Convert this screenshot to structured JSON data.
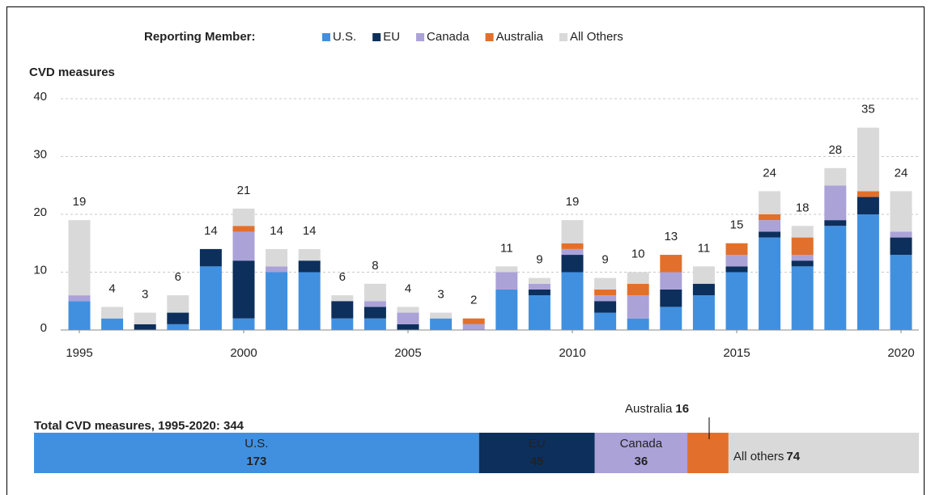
{
  "chart_data": [
    {
      "type": "bar",
      "stacked": true,
      "legend_title": "Reporting Member:",
      "ylabel": "CVD measures",
      "x": [
        1995,
        1996,
        1997,
        1998,
        1999,
        2000,
        2001,
        2002,
        2003,
        2004,
        2005,
        2006,
        2007,
        2008,
        2009,
        2010,
        2011,
        2012,
        2013,
        2014,
        2015,
        2016,
        2017,
        2018,
        2019,
        2020
      ],
      "xlim": [
        1995,
        2020
      ],
      "xticks": [
        1995,
        2000,
        2005,
        2010,
        2015,
        2020
      ],
      "ylim": [
        0,
        40
      ],
      "yticks": [
        0,
        10,
        20,
        30,
        40
      ],
      "grid": true,
      "series": [
        {
          "name": "U.S.",
          "color": "#4190e0",
          "values": [
            5,
            2,
            0,
            1,
            11,
            2,
            10,
            10,
            2,
            2,
            0,
            2,
            0,
            7,
            6,
            10,
            3,
            2,
            4,
            6,
            10,
            16,
            11,
            18,
            20,
            13
          ]
        },
        {
          "name": "EU",
          "color": "#0d2f5c",
          "values": [
            0,
            0,
            1,
            2,
            3,
            10,
            0,
            2,
            3,
            2,
            1,
            0,
            0,
            0,
            1,
            3,
            2,
            0,
            3,
            2,
            1,
            1,
            1,
            1,
            3,
            3
          ]
        },
        {
          "name": "Canada",
          "color": "#aba2d8",
          "values": [
            1,
            0,
            0,
            0,
            0,
            5,
            1,
            0,
            0,
            1,
            2,
            0,
            1,
            3,
            1,
            1,
            1,
            4,
            3,
            0,
            2,
            2,
            1,
            6,
            0,
            1
          ]
        },
        {
          "name": "Australia",
          "color": "#e2702c",
          "values": [
            0,
            0,
            0,
            0,
            0,
            1,
            0,
            0,
            0,
            0,
            0,
            0,
            1,
            0,
            0,
            1,
            1,
            2,
            3,
            0,
            2,
            1,
            3,
            0,
            1,
            0
          ]
        },
        {
          "name": "All Others",
          "color": "#d9d9d9",
          "values": [
            13,
            2,
            2,
            3,
            0,
            3,
            3,
            2,
            1,
            3,
            1,
            1,
            0,
            1,
            1,
            4,
            2,
            2,
            0,
            3,
            0,
            4,
            2,
            3,
            11,
            7
          ]
        }
      ],
      "totals": [
        19,
        4,
        3,
        6,
        14,
        21,
        14,
        14,
        6,
        8,
        4,
        3,
        2,
        11,
        9,
        19,
        9,
        10,
        13,
        11,
        15,
        24,
        18,
        28,
        35,
        24
      ]
    },
    {
      "type": "bar",
      "orientation": "horizontal",
      "stacked": true,
      "title": "Total CVD measures, 1995-2020: 344",
      "categories": [
        "U.S.",
        "EU",
        "Canada",
        "Australia",
        "All others"
      ],
      "values": [
        173,
        45,
        36,
        16,
        74
      ],
      "colors": [
        "#4190e0",
        "#0d2f5c",
        "#aba2d8",
        "#e2702c",
        "#d9d9d9"
      ],
      "xlim": [
        0,
        344
      ]
    }
  ]
}
